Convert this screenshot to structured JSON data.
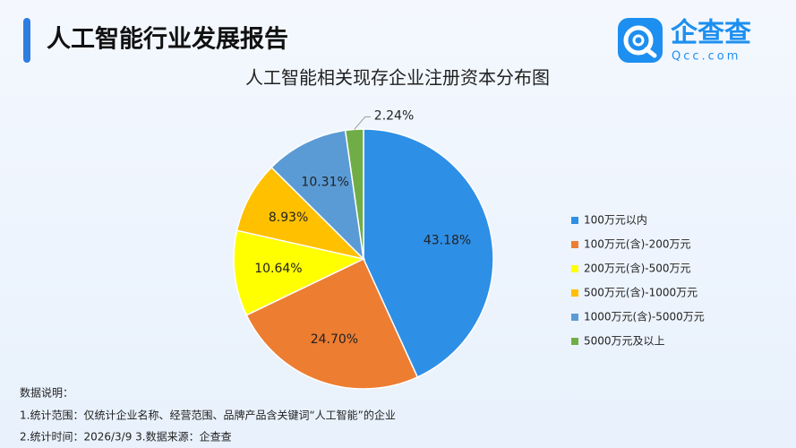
{
  "header": {
    "title": "人工智能行业发展报告",
    "logo_text": "企查查",
    "logo_url": "Qcc.com"
  },
  "chart_data": {
    "type": "pie",
    "title": "人工智能相关现存企业注册资本分布图",
    "categories": [
      "100万元以内",
      "100万元(含)-200万元",
      "200万元(含)-500万元",
      "500万元(含)-1000万元",
      "1000万元(含)-5000万元",
      "5000万元及以上"
    ],
    "values": [
      43.18,
      24.7,
      10.64,
      8.93,
      10.31,
      2.24
    ],
    "value_labels": [
      "43.18%",
      "24.70%",
      "10.64%",
      "8.93%",
      "10.31%",
      "2.24%"
    ],
    "colors": [
      "#2e8fe6",
      "#ed7d31",
      "#ffff00",
      "#ffc000",
      "#5b9bd5",
      "#70ad47"
    ],
    "legend": "right"
  },
  "notes": [
    "数据说明：",
    "1.统计范围：仅统计企业名称、经营范围、品牌产品含关键词“人工智能”的企业",
    "2.统计时间：2026/3/9 3.数据来源：企查查"
  ]
}
